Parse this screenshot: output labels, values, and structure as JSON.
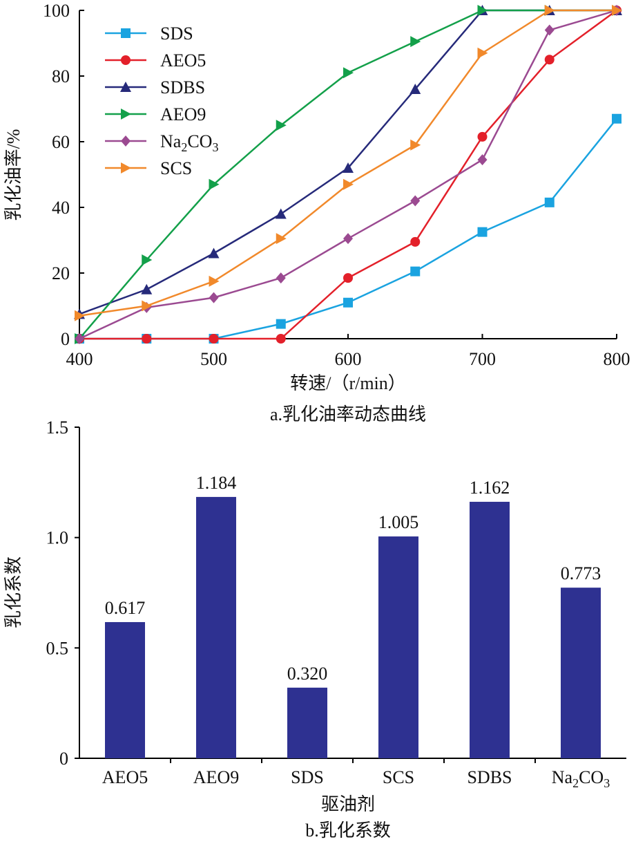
{
  "chart_data": [
    {
      "type": "line",
      "caption": "a.乳化油率动态曲线",
      "xlabel": "转速/（r/min）",
      "ylabel": "乳化油率/%",
      "xlim": [
        400,
        800
      ],
      "ylim": [
        0,
        100
      ],
      "xticks": [
        "400",
        "500",
        "600",
        "700",
        "800"
      ],
      "yticks": [
        "0",
        "20",
        "40",
        "60",
        "80",
        "100"
      ],
      "legend_position": "top-left",
      "x": [
        400,
        450,
        500,
        550,
        600,
        650,
        700,
        750,
        800
      ],
      "series": [
        {
          "name": "SDS",
          "marker": "square",
          "color": "#1aa3e0",
          "values": [
            0,
            0,
            0,
            4.5,
            11,
            20.5,
            32.5,
            41.5,
            67
          ]
        },
        {
          "name": "AEO5",
          "marker": "circle",
          "color": "#e3202a",
          "values": [
            0,
            0,
            0,
            0,
            18.5,
            29.5,
            61.5,
            85,
            100
          ]
        },
        {
          "name": "SDBS",
          "marker": "triangle-up",
          "color": "#262a7a",
          "values": [
            7.5,
            15,
            26,
            38,
            52,
            76,
            100,
            100,
            100
          ]
        },
        {
          "name": "AEO9",
          "marker": "triangle-right",
          "color": "#13a04a",
          "values": [
            0,
            24,
            47,
            65,
            81,
            90.5,
            100,
            100,
            100
          ]
        },
        {
          "name": "Na2CO3",
          "name_base": "Na",
          "name_sub1": "2",
          "name_mid": "CO",
          "name_sub2": "3",
          "marker": "diamond",
          "color": "#9b4a91",
          "values": [
            0,
            9.5,
            12.5,
            18.5,
            30.5,
            42,
            54.5,
            94,
            100
          ]
        },
        {
          "name": "SCS",
          "marker": "triangle-right",
          "color": "#f1892b",
          "values": [
            7,
            10,
            17.5,
            30.5,
            47,
            59,
            87,
            100,
            100
          ]
        }
      ]
    },
    {
      "type": "bar",
      "caption": "b.乳化系数",
      "xlabel": "驱油剂",
      "ylabel": "乳化系数",
      "ylim": [
        0,
        1.5
      ],
      "yticks": [
        "0",
        "0.5",
        "1.0",
        "1.5"
      ],
      "bar_color": "#2e3191",
      "categories": [
        {
          "label": "AEO5"
        },
        {
          "label": "AEO9"
        },
        {
          "label": "SDS"
        },
        {
          "label": "SCS"
        },
        {
          "label": "SDBS"
        },
        {
          "label": "Na2CO3",
          "base": "Na",
          "sub1": "2",
          "mid": "CO",
          "sub2": "3"
        }
      ],
      "values": [
        0.617,
        1.184,
        0.32,
        1.005,
        1.162,
        0.773
      ],
      "value_labels": [
        "0.617",
        "1.184",
        "0.320",
        "1.005",
        "1.162",
        "0.773"
      ]
    }
  ]
}
